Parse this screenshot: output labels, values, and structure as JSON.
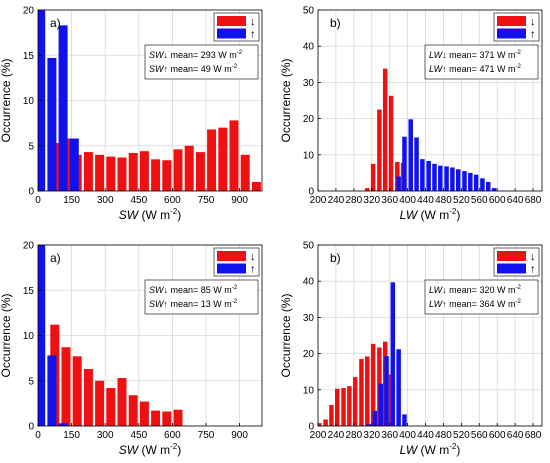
{
  "chart_data": [
    {
      "type": "bar",
      "panel_label": "a)",
      "xlabel_var": "SW",
      "xlabel_unit": "(W m",
      "xlabel_exp": "-2",
      "xlabel_close": ")",
      "ylabel": "Occurrence (%)",
      "xlim": [
        0,
        1000
      ],
      "ylim": [
        0,
        20
      ],
      "xticks": [
        0,
        150,
        300,
        450,
        600,
        750,
        900
      ],
      "yticks": [
        0,
        5,
        10,
        15,
        20
      ],
      "legend": {
        "placement": "top-right",
        "down": "↓",
        "up": "↑"
      },
      "stats": [
        {
          "var": "SW↓",
          "text": " mean= 293 W m",
          "exp": "-2"
        },
        {
          "var": "SW↑",
          "text": " mean= 49 W m",
          "exp": "-2"
        }
      ],
      "series": [
        {
          "key": "down",
          "color": "#ee1111",
          "x": [
            0,
            75,
            125,
            175,
            225,
            275,
            325,
            375,
            425,
            475,
            525,
            575,
            625,
            675,
            725,
            775,
            825,
            875,
            925,
            975
          ],
          "values": [
            13.8,
            5.3,
            5.8,
            4.0,
            4.3,
            4.0,
            3.8,
            3.7,
            4.2,
            4.4,
            3.5,
            3.4,
            4.6,
            5.0,
            4.3,
            6.8,
            7.0,
            7.8,
            4.0,
            1.0
          ]
        },
        {
          "key": "up",
          "color": "#1111ee",
          "x": [
            12,
            62,
            112,
            162
          ],
          "values": [
            20,
            14.7,
            18.3,
            5.8
          ]
        }
      ]
    },
    {
      "type": "bar",
      "panel_label": "b)",
      "xlabel_var": "LW",
      "xlabel_unit": "(W m",
      "xlabel_exp": "-2",
      "xlabel_close": ")",
      "ylabel": "Occurrence (%)",
      "xlim": [
        200,
        700
      ],
      "ylim": [
        0,
        50
      ],
      "xticks": [
        200,
        240,
        280,
        320,
        360,
        400,
        440,
        480,
        520,
        560,
        600,
        640,
        680
      ],
      "yticks": [
        0,
        10,
        20,
        30,
        40,
        50
      ],
      "legend": {
        "placement": "top-right",
        "down": "↓",
        "up": "↑"
      },
      "stats": [
        {
          "var": "LW↓",
          "text": " mean= 371 W m",
          "exp": "-2"
        },
        {
          "var": "LW↑",
          "text": " mean= 471 W m",
          "exp": "-2"
        }
      ],
      "series": [
        {
          "key": "down",
          "color": "#ee1111",
          "x": [
            310,
            323,
            337,
            350,
            363,
            377,
            390
          ],
          "values": [
            0.8,
            7.5,
            22.5,
            33.8,
            26.3,
            8.0,
            7.8
          ]
        },
        {
          "key": "up",
          "color": "#1111ee",
          "x": [
            380,
            393,
            407,
            420,
            433,
            447,
            460,
            473,
            487,
            500,
            513,
            527,
            540,
            553,
            567,
            580,
            593
          ],
          "values": [
            4.0,
            15.0,
            19.8,
            14.8,
            8.8,
            8.3,
            7.5,
            7.0,
            6.8,
            6.5,
            6.0,
            5.5,
            5.0,
            4.5,
            3.5,
            2.5,
            0.8
          ]
        }
      ]
    },
    {
      "type": "bar",
      "panel_label": "a)",
      "xlabel_var": "SW",
      "xlabel_unit": "(W m",
      "xlabel_exp": "-2",
      "xlabel_close": ")",
      "ylabel": "Occurrence (%)",
      "xlim": [
        0,
        1000
      ],
      "ylim": [
        0,
        20
      ],
      "xticks": [
        0,
        150,
        300,
        450,
        600,
        750,
        900
      ],
      "yticks": [
        0,
        5,
        10,
        15,
        20
      ],
      "legend": {
        "placement": "top-right",
        "down": "↓",
        "up": "↑"
      },
      "stats": [
        {
          "var": "SW↓",
          "text": " mean= 85 W m",
          "exp": "-2"
        },
        {
          "var": "SW↑",
          "text": " mean= 13 W m",
          "exp": "-2"
        }
      ],
      "series": [
        {
          "key": "down",
          "color": "#ee1111",
          "x": [
            0,
            75,
            125,
            175,
            225,
            275,
            325,
            375,
            425,
            475,
            525,
            575,
            625
          ],
          "values": [
            20,
            11.2,
            8.7,
            7.7,
            6.3,
            5.0,
            4.2,
            5.3,
            3.4,
            2.7,
            1.7,
            1.6,
            1.8
          ]
        },
        {
          "key": "up",
          "color": "#1111ee",
          "x": [
            12,
            62,
            112
          ],
          "values": [
            20,
            7.8,
            0.3
          ]
        }
      ]
    },
    {
      "type": "bar",
      "panel_label": "b)",
      "xlabel_var": "LW",
      "xlabel_unit": "(W m",
      "xlabel_exp": "-2",
      "xlabel_close": ")",
      "ylabel": "Occurrence (%)",
      "xlim": [
        200,
        700
      ],
      "ylim": [
        0,
        50
      ],
      "xticks": [
        200,
        240,
        280,
        320,
        360,
        400,
        440,
        480,
        520,
        560,
        600,
        640,
        680
      ],
      "yticks": [
        0,
        10,
        20,
        30,
        40,
        50
      ],
      "legend": {
        "placement": "top-right",
        "down": "↓",
        "up": "↑"
      },
      "stats": [
        {
          "var": "LW↓",
          "text": " mean= 320 W m",
          "exp": "-2"
        },
        {
          "var": "LW↑",
          "text": " mean= 364 W m",
          "exp": "-2"
        }
      ],
      "series": [
        {
          "key": "down",
          "color": "#ee1111",
          "x": [
            203,
            217,
            230,
            243,
            257,
            270,
            283,
            297,
            310,
            323,
            337,
            350,
            363
          ],
          "values": [
            0.8,
            1.8,
            5.8,
            10.3,
            10.5,
            11.0,
            13.5,
            18.5,
            19.2,
            22.7,
            21.7,
            23.3,
            14.2
          ]
        },
        {
          "key": "up",
          "color": "#1111ee",
          "x": [
            313,
            327,
            340,
            353,
            367,
            380,
            393
          ],
          "values": [
            0.5,
            4.2,
            11.7,
            19.3,
            39.7,
            21.2,
            3.2
          ]
        }
      ]
    }
  ]
}
